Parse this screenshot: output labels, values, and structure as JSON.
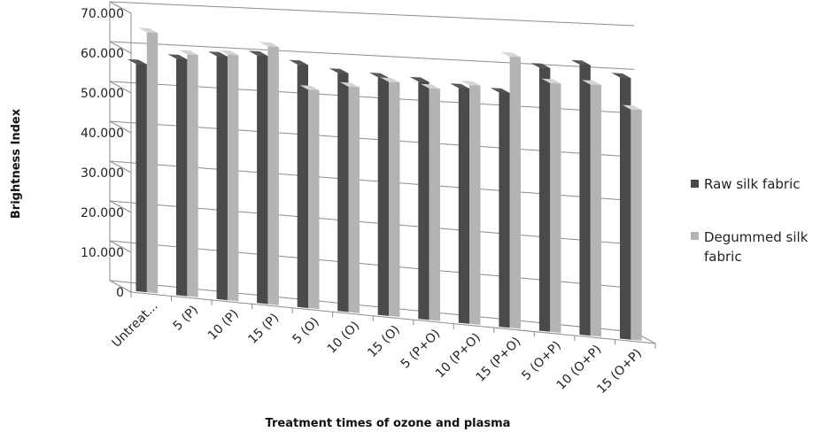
{
  "chart_data": {
    "type": "bar",
    "title": "",
    "xlabel": "Treatment times of ozone and plasma",
    "ylabel": "Brightness Index",
    "ylim": [
      0,
      70
    ],
    "yticks": [
      "0",
      "10.000",
      "20.000",
      "30.000",
      "40.000",
      "50.000",
      "60.000",
      "70.000"
    ],
    "categories": [
      "Untreat...",
      "5 (P)",
      "10 (P)",
      "15 (P)",
      "5 (O)",
      "10 (O)",
      "15 (O)",
      "5 (P+O)",
      "10 (P+O)",
      "15 (P+O)",
      "5 (O+P)",
      "10 (O+P)",
      "15 (O+P)"
    ],
    "series": [
      {
        "name": "Raw silk fabric",
        "color": "#4a4a4a",
        "values": [
          57,
          58.8,
          60,
          60.7,
          59,
          57.5,
          57,
          56.5,
          55.5,
          55,
          61.3,
          62.5,
          60
        ]
      },
      {
        "name": "Degummed silk fabric",
        "color": "#b4b4b4",
        "values": [
          65,
          60,
          60.5,
          63,
          53,
          54.3,
          56,
          55,
          56.3,
          63.5,
          57.8,
          58,
          52.8
        ]
      }
    ],
    "grid": true,
    "legend": "right"
  }
}
